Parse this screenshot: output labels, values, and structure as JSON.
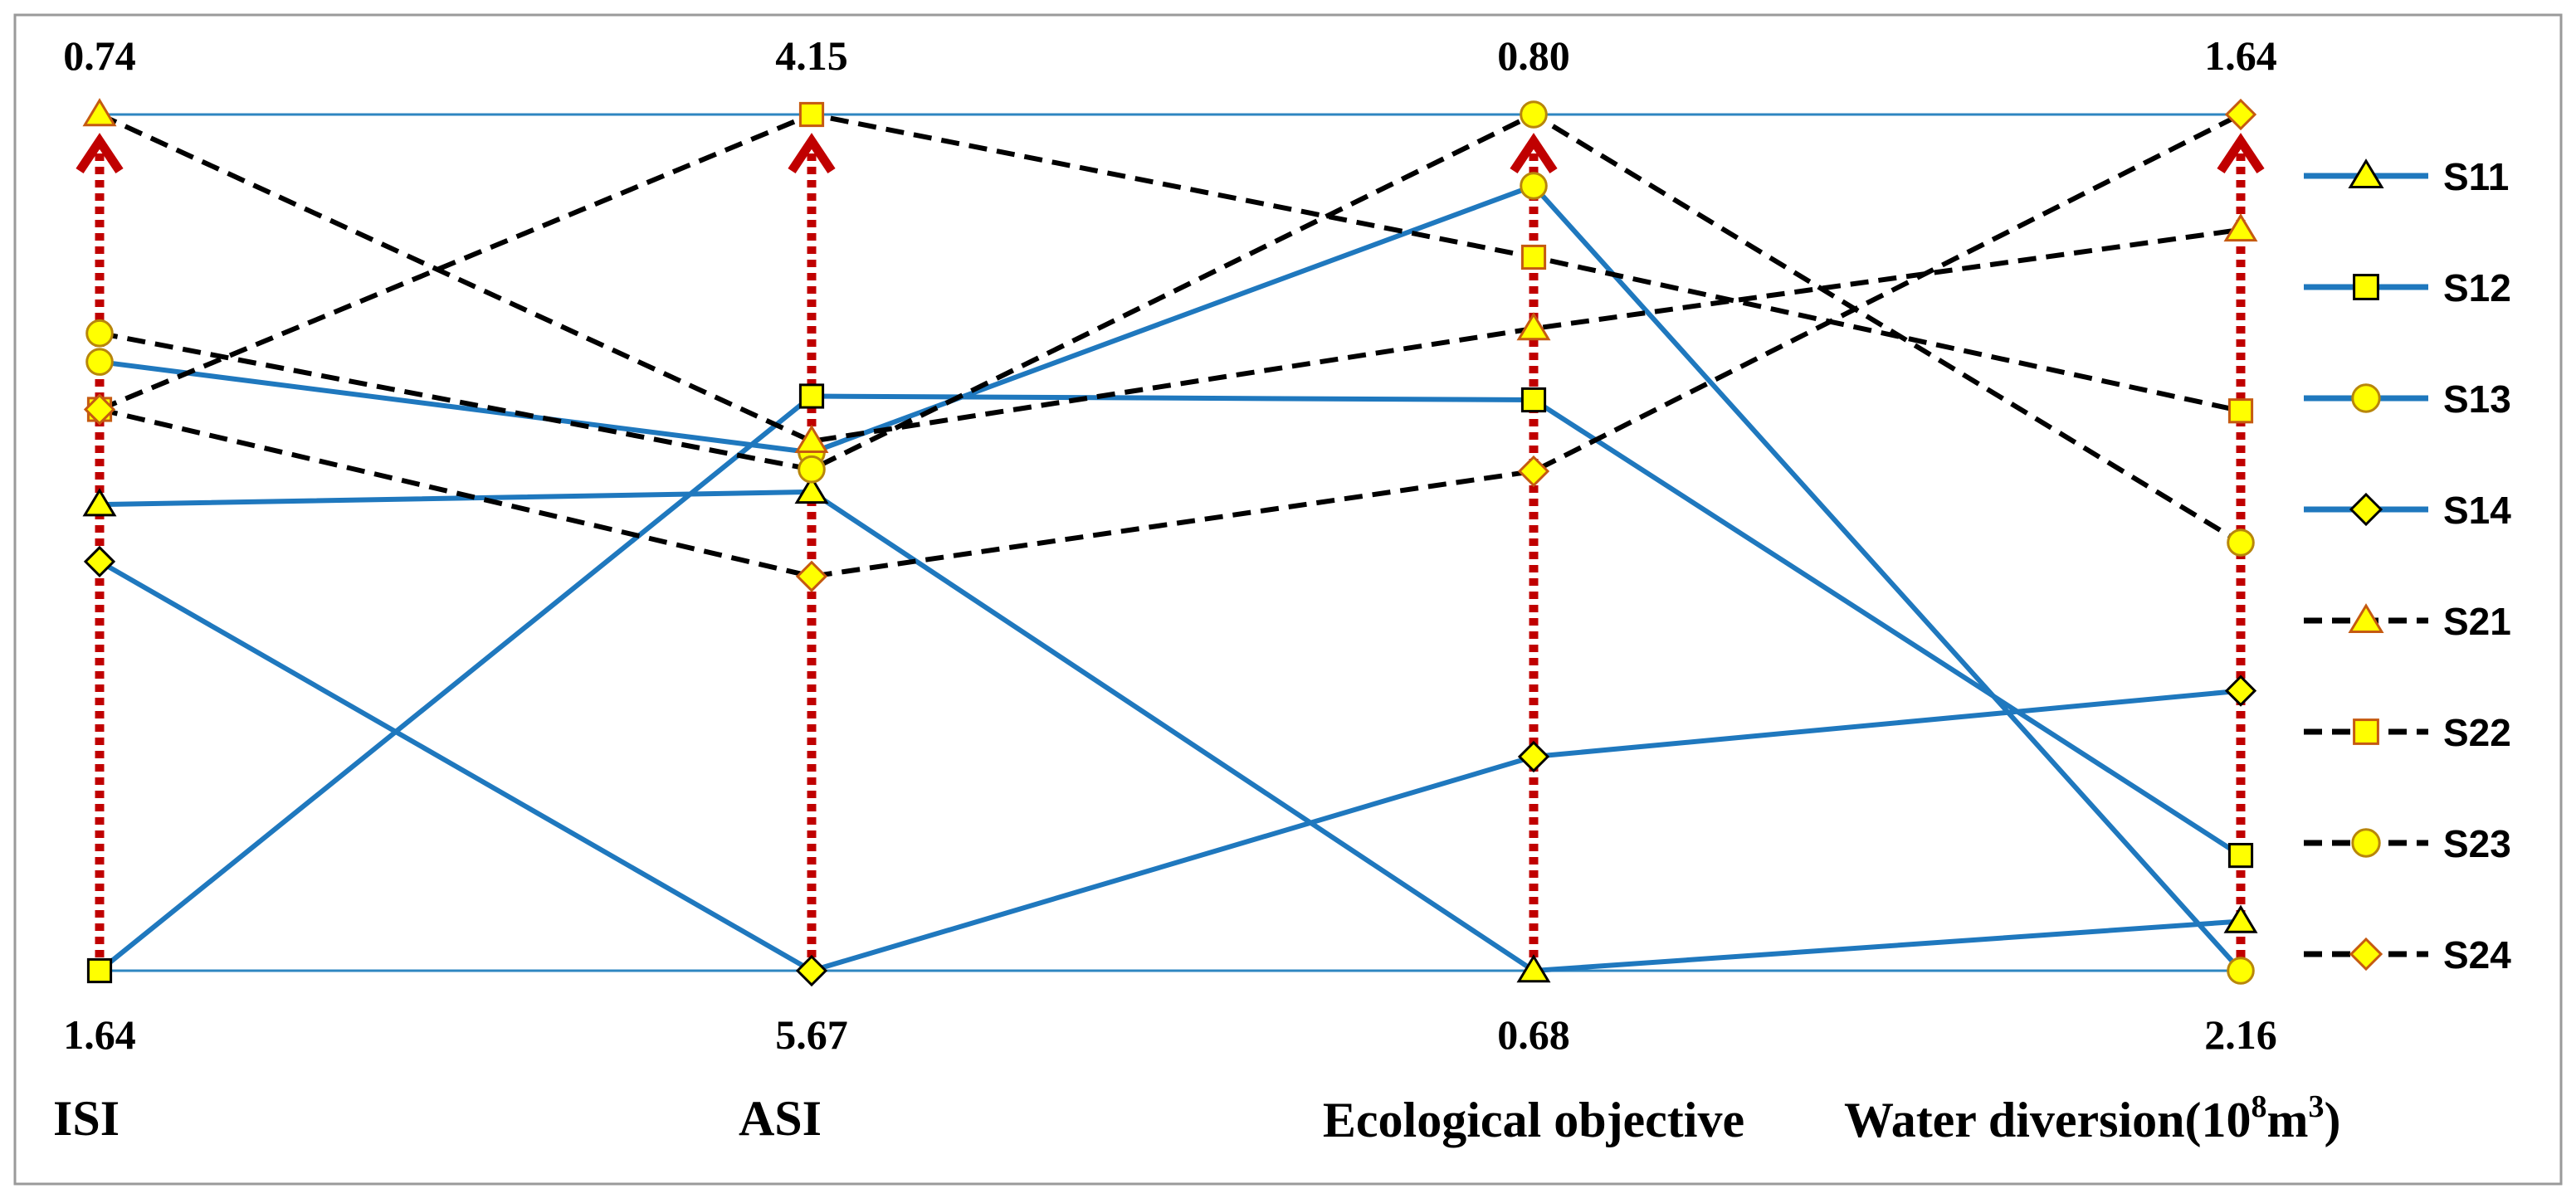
{
  "chart_data": {
    "type": "parallel-coordinates",
    "axes": [
      {
        "name": "ISI",
        "top_label": "0.74",
        "bottom_label": "1.64",
        "top_value": 0.74,
        "bottom_value": 1.64
      },
      {
        "name": "ASI",
        "top_label": "4.15",
        "bottom_label": "5.67",
        "top_value": 4.15,
        "bottom_value": 5.67
      },
      {
        "name": "Ecological objective",
        "top_label": "0.80",
        "bottom_label": "0.68",
        "top_value": 0.8,
        "bottom_value": 0.68
      },
      {
        "name_main": "Water diversion(10",
        "name_sup1": "8",
        "name_mid": "m",
        "name_sup2": "3",
        "name_end": ")",
        "top_label": "1.64",
        "bottom_label": "2.16",
        "top_value": 1.64,
        "bottom_value": 2.16
      }
    ],
    "series": [
      {
        "name": "S11",
        "style": "solid",
        "marker": "triangle",
        "values": [
          1.15,
          4.82,
          0.68,
          2.13
        ]
      },
      {
        "name": "S12",
        "style": "solid",
        "marker": "square",
        "values": [
          1.64,
          4.65,
          0.76,
          2.09
        ]
      },
      {
        "name": "S13",
        "style": "solid",
        "marker": "circle",
        "values": [
          1.0,
          4.75,
          0.79,
          2.16
        ]
      },
      {
        "name": "S14",
        "style": "solid",
        "marker": "diamond",
        "values": [
          1.21,
          5.67,
          0.71,
          1.99
        ]
      },
      {
        "name": "S21",
        "style": "dashed",
        "marker": "triangle",
        "values": [
          0.74,
          4.73,
          0.77,
          1.71
        ]
      },
      {
        "name": "S22",
        "style": "dashed",
        "marker": "square",
        "values": [
          1.05,
          4.15,
          0.78,
          1.82
        ]
      },
      {
        "name": "S23",
        "style": "dashed",
        "marker": "circle",
        "values": [
          0.97,
          4.78,
          0.8,
          1.9
        ]
      },
      {
        "name": "S24",
        "style": "dashed",
        "marker": "diamond",
        "values": [
          1.05,
          4.97,
          0.75,
          1.64
        ]
      }
    ],
    "legend": [
      "S11",
      "S12",
      "S13",
      "S14",
      "S21",
      "S22",
      "S23",
      "S24"
    ],
    "colors": {
      "solid_line": "#1f78be",
      "dashed_line": "#000000",
      "frame": "#2e86c1",
      "axis_arrow": "#c00000",
      "marker_fill": "#ffff00",
      "marker_edge_solid": "#000000",
      "marker_edge_dashed": "#c55a11"
    }
  }
}
